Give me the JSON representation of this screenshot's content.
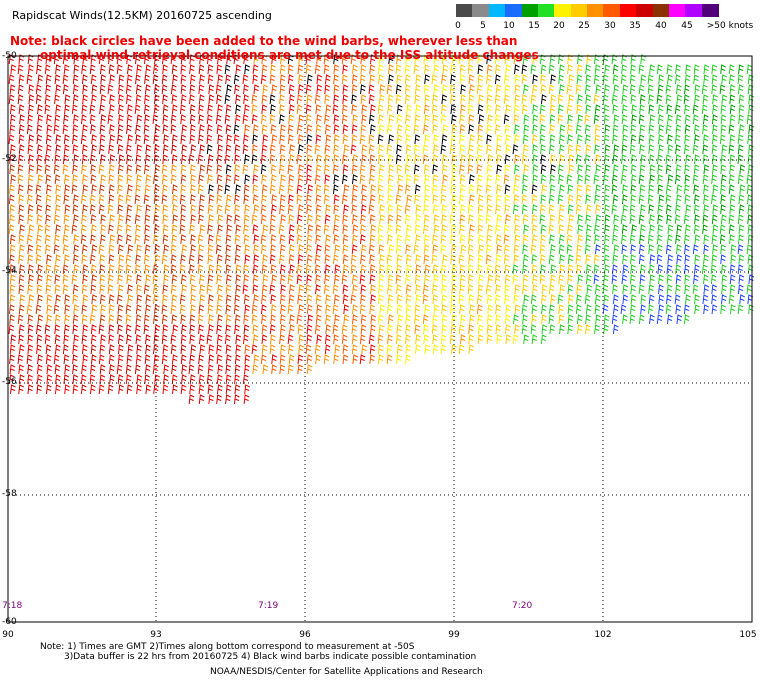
{
  "title": "Rapidscat Winds(12.5KM) 20160725 ascending",
  "legend": {
    "labels": [
      "0",
      "5",
      "10",
      "15",
      "20",
      "25",
      "30",
      "35",
      "40",
      "45",
      ">50 knots"
    ],
    "colors": [
      "#4a4a4a",
      "#8a8a8a",
      "#00b8ff",
      "#1a6cff",
      "#00a000",
      "#24e024",
      "#fff200",
      "#ffcc00",
      "#ff9000",
      "#ff5a00",
      "#ff0000",
      "#cc0000",
      "#8b3000",
      "#ff00ff",
      "#b000ff",
      "#50007a"
    ]
  },
  "note": {
    "line1": "Note: black circles have been added to the wind barbs, wherever less than",
    "line2": "optimal wind retrieval conditions are met due to the ISS altitude changes"
  },
  "latitudes": [
    "-50",
    "-52",
    "-54",
    "-56",
    "-58",
    "-60"
  ],
  "longitudes": [
    "90",
    "93",
    "96",
    "99",
    "102",
    "105"
  ],
  "times": [
    "7:18",
    "7:19",
    "7:20"
  ],
  "footer": {
    "line1": "Note: 1) Times are GMT 2)Times along bottom correspond to measurement at -50S",
    "line2": "3)Data buffer is 22 hrs from 20160725 4) Black wind barbs indicate possible contamination",
    "credit": "NOAA/NESDIS/Center for Satellite Applications and Research"
  }
}
